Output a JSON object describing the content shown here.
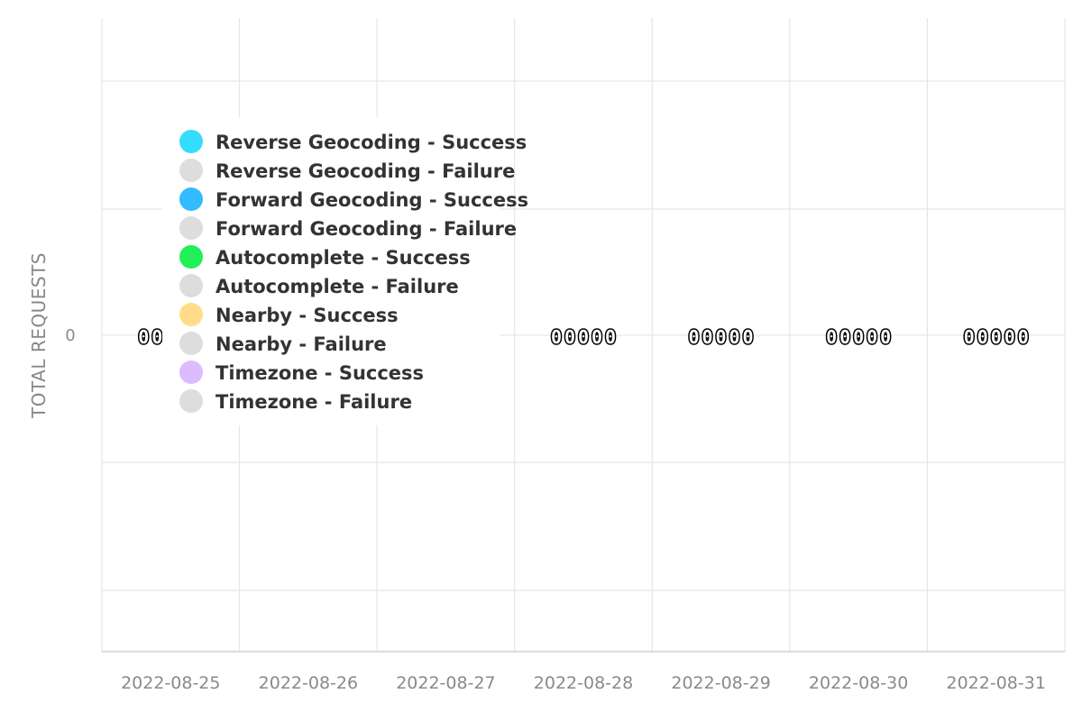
{
  "chart_data": {
    "type": "bar",
    "ylabel": "TOTAL REQUESTS",
    "y_ticks": [
      "0"
    ],
    "categories": [
      "2022-08-25",
      "2022-08-26",
      "2022-08-27",
      "2022-08-28",
      "2022-08-29",
      "2022-08-30",
      "2022-08-31"
    ],
    "grid": true,
    "legend_position": "top-left",
    "series": [
      {
        "name": "Reverse Geocoding - Success",
        "color": "#33ddff",
        "values": [
          0,
          0,
          0,
          0,
          0,
          0,
          0
        ]
      },
      {
        "name": "Reverse Geocoding - Failure",
        "color": "#dddddd",
        "values": [
          0,
          0,
          0,
          0,
          0,
          0,
          0
        ]
      },
      {
        "name": "Forward Geocoding - Success",
        "color": "#33bbff",
        "values": [
          0,
          0,
          0,
          0,
          0,
          0,
          0
        ]
      },
      {
        "name": "Forward Geocoding - Failure",
        "color": "#dddddd",
        "values": [
          0,
          0,
          0,
          0,
          0,
          0,
          0
        ]
      },
      {
        "name": "Autocomplete - Success",
        "color": "#22ee55",
        "values": [
          0,
          0,
          0,
          0,
          0,
          0,
          0
        ]
      },
      {
        "name": "Autocomplete - Failure",
        "color": "#dddddd",
        "values": [
          0,
          0,
          0,
          0,
          0,
          0,
          0
        ]
      },
      {
        "name": "Nearby - Success",
        "color": "#ffdd88",
        "values": [
          0,
          0,
          0,
          0,
          0,
          0,
          0
        ]
      },
      {
        "name": "Nearby - Failure",
        "color": "#dddddd",
        "values": [
          0,
          0,
          0,
          0,
          0,
          0,
          0
        ]
      },
      {
        "name": "Timezone - Success",
        "color": "#ddbbff",
        "values": [
          0,
          0,
          0,
          0,
          0,
          0,
          0
        ]
      },
      {
        "name": "Timezone - Failure",
        "color": "#dddddd",
        "values": [
          0,
          0,
          0,
          0,
          0,
          0,
          0
        ]
      }
    ]
  }
}
